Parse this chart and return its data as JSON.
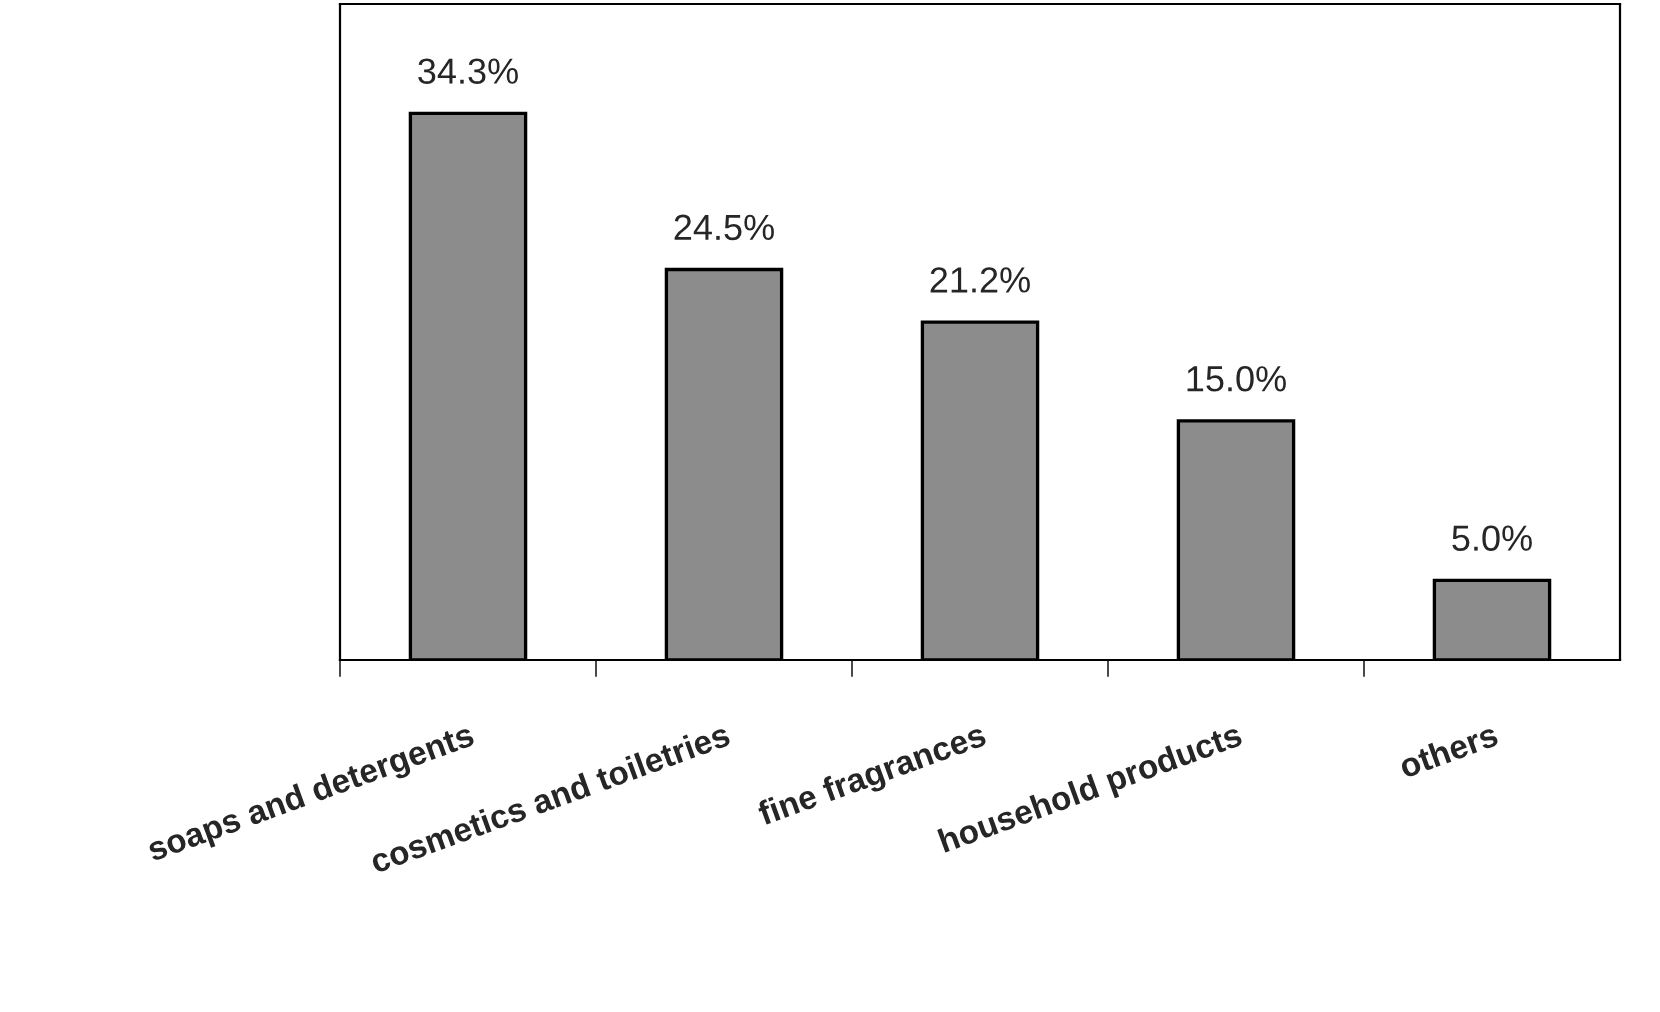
{
  "chart_data": {
    "type": "bar",
    "categories": [
      "soaps and detergents",
      "cosmetics and toiletries",
      "fine fragrances",
      "household products",
      "others"
    ],
    "values": [
      34.3,
      24.5,
      21.2,
      15.0,
      5.0
    ],
    "value_labels": [
      "34.3%",
      "24.5%",
      "21.2%",
      "15.0%",
      "5.0%"
    ],
    "color": "#8c8c8c",
    "grid": false,
    "legend": false
  }
}
